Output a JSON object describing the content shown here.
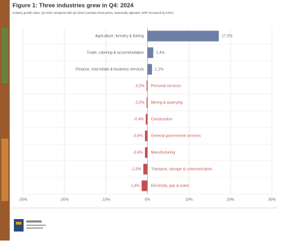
{
  "chart_data": {
    "type": "bar",
    "orientation": "horizontal",
    "title": "Figure 1: Three industries grew in Q4: 2024",
    "subtitle": "Industry growth rates, Q4 2024 compared with Q3 2024 (constant 2015 prices, seasonally adjusted; GDP increased by 0.6%)",
    "categories": [
      "Agriculture, forestry & fishing",
      "Trade, catering & accommodation",
      "Finance, real estate & business services",
      "Personal services",
      "Mining & quarrying",
      "Construction",
      "General government services",
      "Manufacturing",
      "Transport, storage & communication",
      "Electricity, gas & water"
    ],
    "values": [
      17.2,
      1.4,
      1.1,
      -0.2,
      -0.2,
      -0.4,
      -0.6,
      -0.6,
      -1.0,
      -1.4
    ],
    "value_labels": [
      "17,2%",
      "1,4%",
      "1,1%",
      "-0,2%",
      "-0,2%",
      "-0,4%",
      "-0,6%",
      "-0,6%",
      "-1,0%",
      "-1,4%"
    ],
    "colors": {
      "positive": "#6d7fa6",
      "negative": "#c0504d"
    },
    "xlim": [
      -30,
      30
    ],
    "xticks": [
      {
        "value": -30,
        "label": "-30%"
      },
      {
        "value": -20,
        "label": "-20%"
      },
      {
        "value": -10,
        "label": "-10%"
      },
      {
        "value": 0,
        "label": "0%"
      },
      {
        "value": 10,
        "label": "10%"
      },
      {
        "value": 20,
        "label": "20%"
      },
      {
        "value": 30,
        "label": "30%"
      }
    ],
    "grid": true
  }
}
